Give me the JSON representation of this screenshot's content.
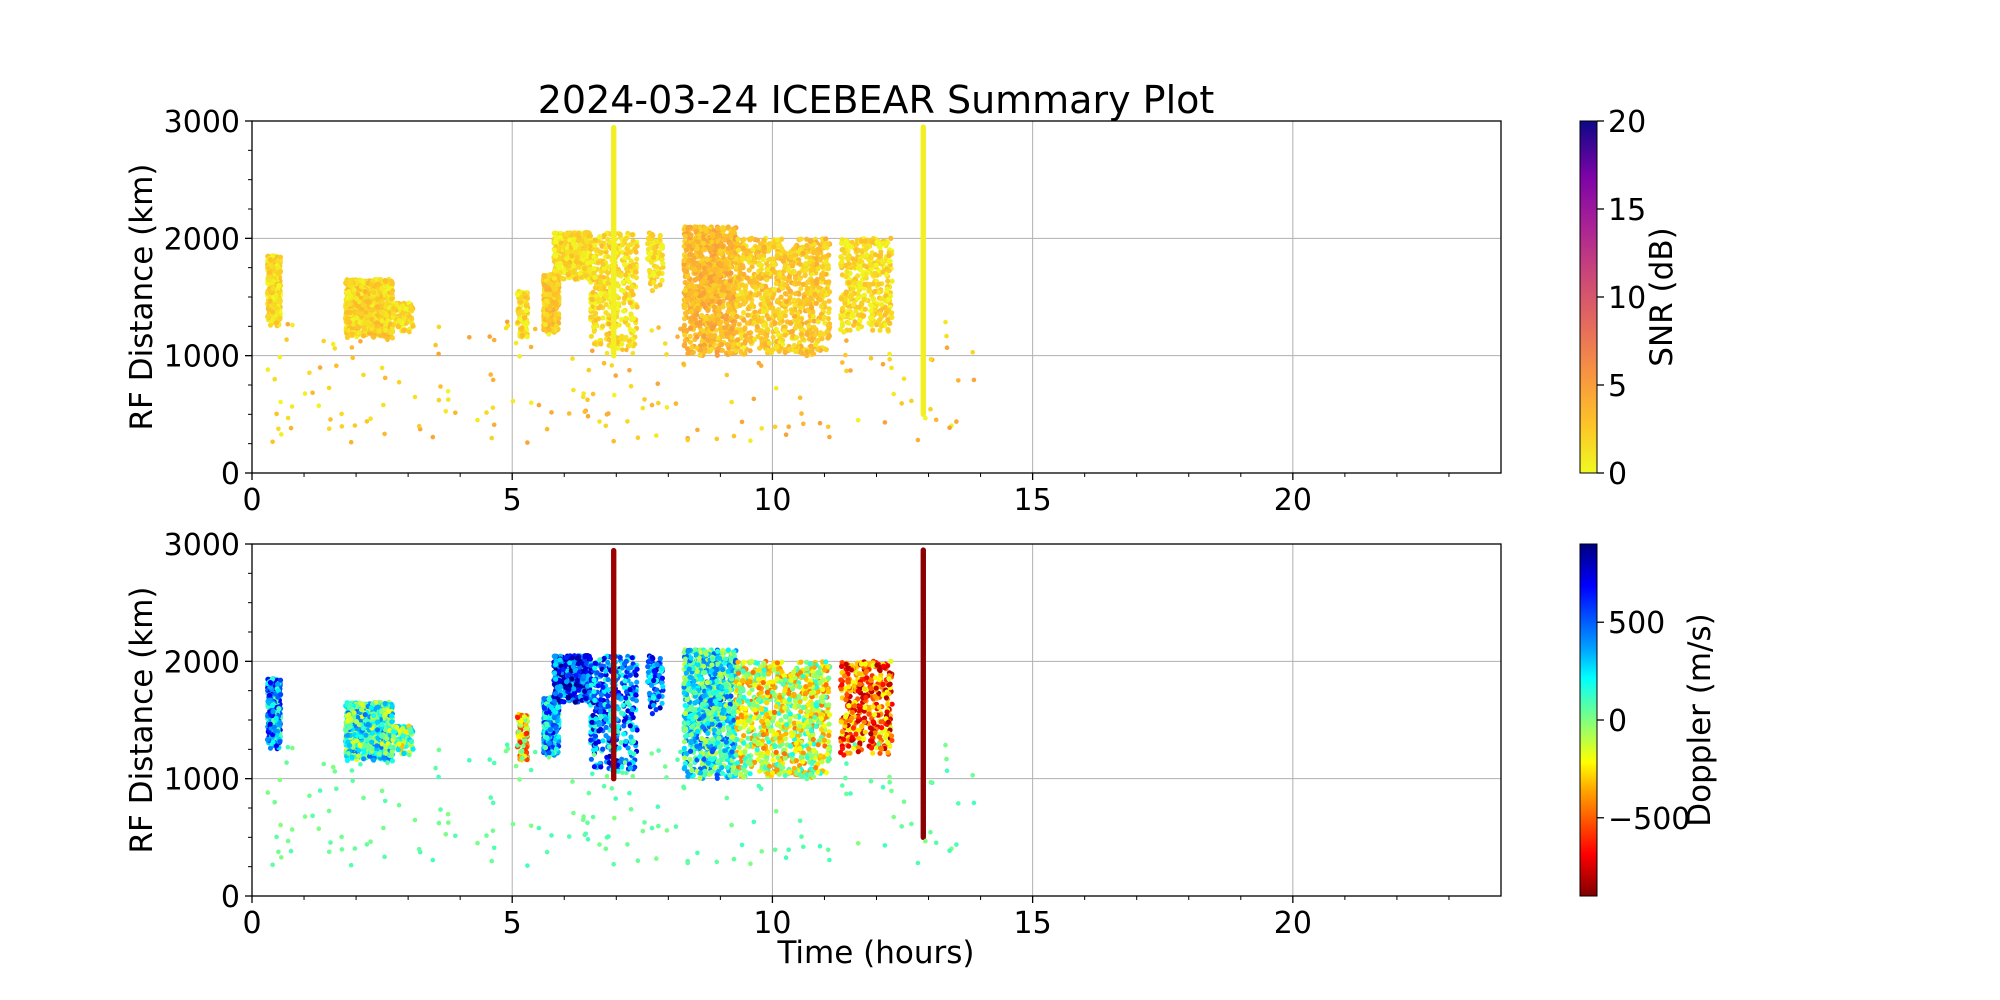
{
  "chart_data": [
    {
      "type": "scatter",
      "title": "2024-03-24 ICEBEAR Summary Plot",
      "xlabel": "",
      "ylabel": "RF Distance (km)",
      "xlim": [
        0,
        24
      ],
      "ylim": [
        0,
        3000
      ],
      "xticks": [
        0,
        5,
        10,
        15,
        20
      ],
      "xtick_labels": [
        "0",
        "5",
        "10",
        "15",
        "20"
      ],
      "yticks": [
        0,
        1000,
        2000,
        3000
      ],
      "ytick_labels": [
        "0",
        "1000",
        "2000",
        "3000"
      ],
      "grid": true,
      "colorbar": {
        "label": "SNR (dB)",
        "colormap": "plasma_r",
        "range": [
          0,
          20
        ],
        "ticks": [
          0,
          5,
          10,
          15,
          20
        ],
        "tick_labels": [
          "0",
          "5",
          "10",
          "15",
          "20"
        ]
      },
      "clusters": [
        {
          "t": [
            0.3,
            0.55
          ],
          "r": [
            1250,
            1850
          ],
          "color": 1.5,
          "density": "mid"
        },
        {
          "t": [
            1.8,
            2.7
          ],
          "r": [
            1150,
            1650
          ],
          "color": 2.0,
          "density": "high"
        },
        {
          "t": [
            2.7,
            3.1
          ],
          "r": [
            1200,
            1450
          ],
          "color": 1.5,
          "density": "low"
        },
        {
          "t": [
            5.1,
            5.3
          ],
          "r": [
            1150,
            1550
          ],
          "color": 1.5,
          "density": "low"
        },
        {
          "t": [
            5.6,
            5.9
          ],
          "r": [
            1200,
            1700
          ],
          "color": 2.5,
          "density": "mid"
        },
        {
          "t": [
            5.8,
            6.5
          ],
          "r": [
            1650,
            2050
          ],
          "color": 1.5,
          "density": "mid"
        },
        {
          "t": [
            6.5,
            7.4
          ],
          "r": [
            1050,
            2050
          ],
          "color": 1.5,
          "density": "mid"
        },
        {
          "t": [
            7.6,
            7.9
          ],
          "r": [
            1550,
            2050
          ],
          "color": 1.5,
          "density": "low"
        },
        {
          "t": [
            8.3,
            9.3
          ],
          "r": [
            1000,
            2100
          ],
          "color": 3.5,
          "density": "high"
        },
        {
          "t": [
            9.3,
            11.1
          ],
          "r": [
            1000,
            2000
          ],
          "color": 2.5,
          "density": "high"
        },
        {
          "t": [
            11.3,
            12.3
          ],
          "r": [
            1200,
            2000
          ],
          "color": 1.5,
          "density": "mid"
        }
      ],
      "vertical_streaks": [
        {
          "t": 6.95,
          "r": [
            1000,
            2950
          ],
          "color": 0.5
        },
        {
          "t": 12.9,
          "r": [
            500,
            2950
          ],
          "color": 0.5
        }
      ],
      "scattered_points": {
        "t": [
          0.3,
          14.0
        ],
        "r": [
          250,
          1300
        ],
        "color": 2.5,
        "count": 200
      }
    },
    {
      "type": "scatter",
      "title": "",
      "xlabel": "Time (hours)",
      "ylabel": "RF Distance (km)",
      "xlim": [
        0,
        24
      ],
      "ylim": [
        0,
        3000
      ],
      "xticks": [
        0,
        5,
        10,
        15,
        20
      ],
      "xtick_labels": [
        "0",
        "5",
        "10",
        "15",
        "20"
      ],
      "yticks": [
        0,
        1000,
        2000,
        3000
      ],
      "ytick_labels": [
        "0",
        "1000",
        "2000",
        "3000"
      ],
      "grid": true,
      "colorbar": {
        "label": "Doppler (m/s)",
        "colormap": "jet_r",
        "range": [
          -900,
          900
        ],
        "ticks": [
          -500,
          0,
          500
        ],
        "tick_labels": [
          "−500",
          "0",
          "500"
        ]
      },
      "clusters": [
        {
          "t": [
            0.3,
            0.55
          ],
          "r": [
            1250,
            1850
          ],
          "color": 400,
          "density": "mid"
        },
        {
          "t": [
            1.8,
            2.7
          ],
          "r": [
            1150,
            1650
          ],
          "color": 150,
          "density": "high"
        },
        {
          "t": [
            2.7,
            3.1
          ],
          "r": [
            1200,
            1450
          ],
          "color": 0,
          "density": "low"
        },
        {
          "t": [
            5.1,
            5.3
          ],
          "r": [
            1150,
            1550
          ],
          "color": -300,
          "density": "low"
        },
        {
          "t": [
            5.6,
            5.9
          ],
          "r": [
            1200,
            1700
          ],
          "color": 350,
          "density": "mid"
        },
        {
          "t": [
            5.8,
            6.5
          ],
          "r": [
            1650,
            2050
          ],
          "color": 600,
          "density": "mid"
        },
        {
          "t": [
            6.5,
            7.4
          ],
          "r": [
            1050,
            2050
          ],
          "color": 450,
          "density": "mid"
        },
        {
          "t": [
            7.6,
            7.9
          ],
          "r": [
            1550,
            2050
          ],
          "color": 500,
          "density": "low"
        },
        {
          "t": [
            8.3,
            9.3
          ],
          "r": [
            1000,
            2100
          ],
          "color": 200,
          "density": "high"
        },
        {
          "t": [
            9.3,
            11.1
          ],
          "r": [
            1000,
            2000
          ],
          "color": -150,
          "density": "high"
        },
        {
          "t": [
            11.3,
            12.3
          ],
          "r": [
            1200,
            2000
          ],
          "color": -500,
          "density": "mid"
        }
      ],
      "vertical_streaks": [
        {
          "t": 6.95,
          "r": [
            1000,
            2950
          ],
          "color": -850
        },
        {
          "t": 12.9,
          "r": [
            500,
            2950
          ],
          "color": -880
        }
      ],
      "scattered_points": {
        "t": [
          0.3,
          14.0
        ],
        "r": [
          250,
          1300
        ],
        "color": 50,
        "count": 200
      }
    }
  ]
}
